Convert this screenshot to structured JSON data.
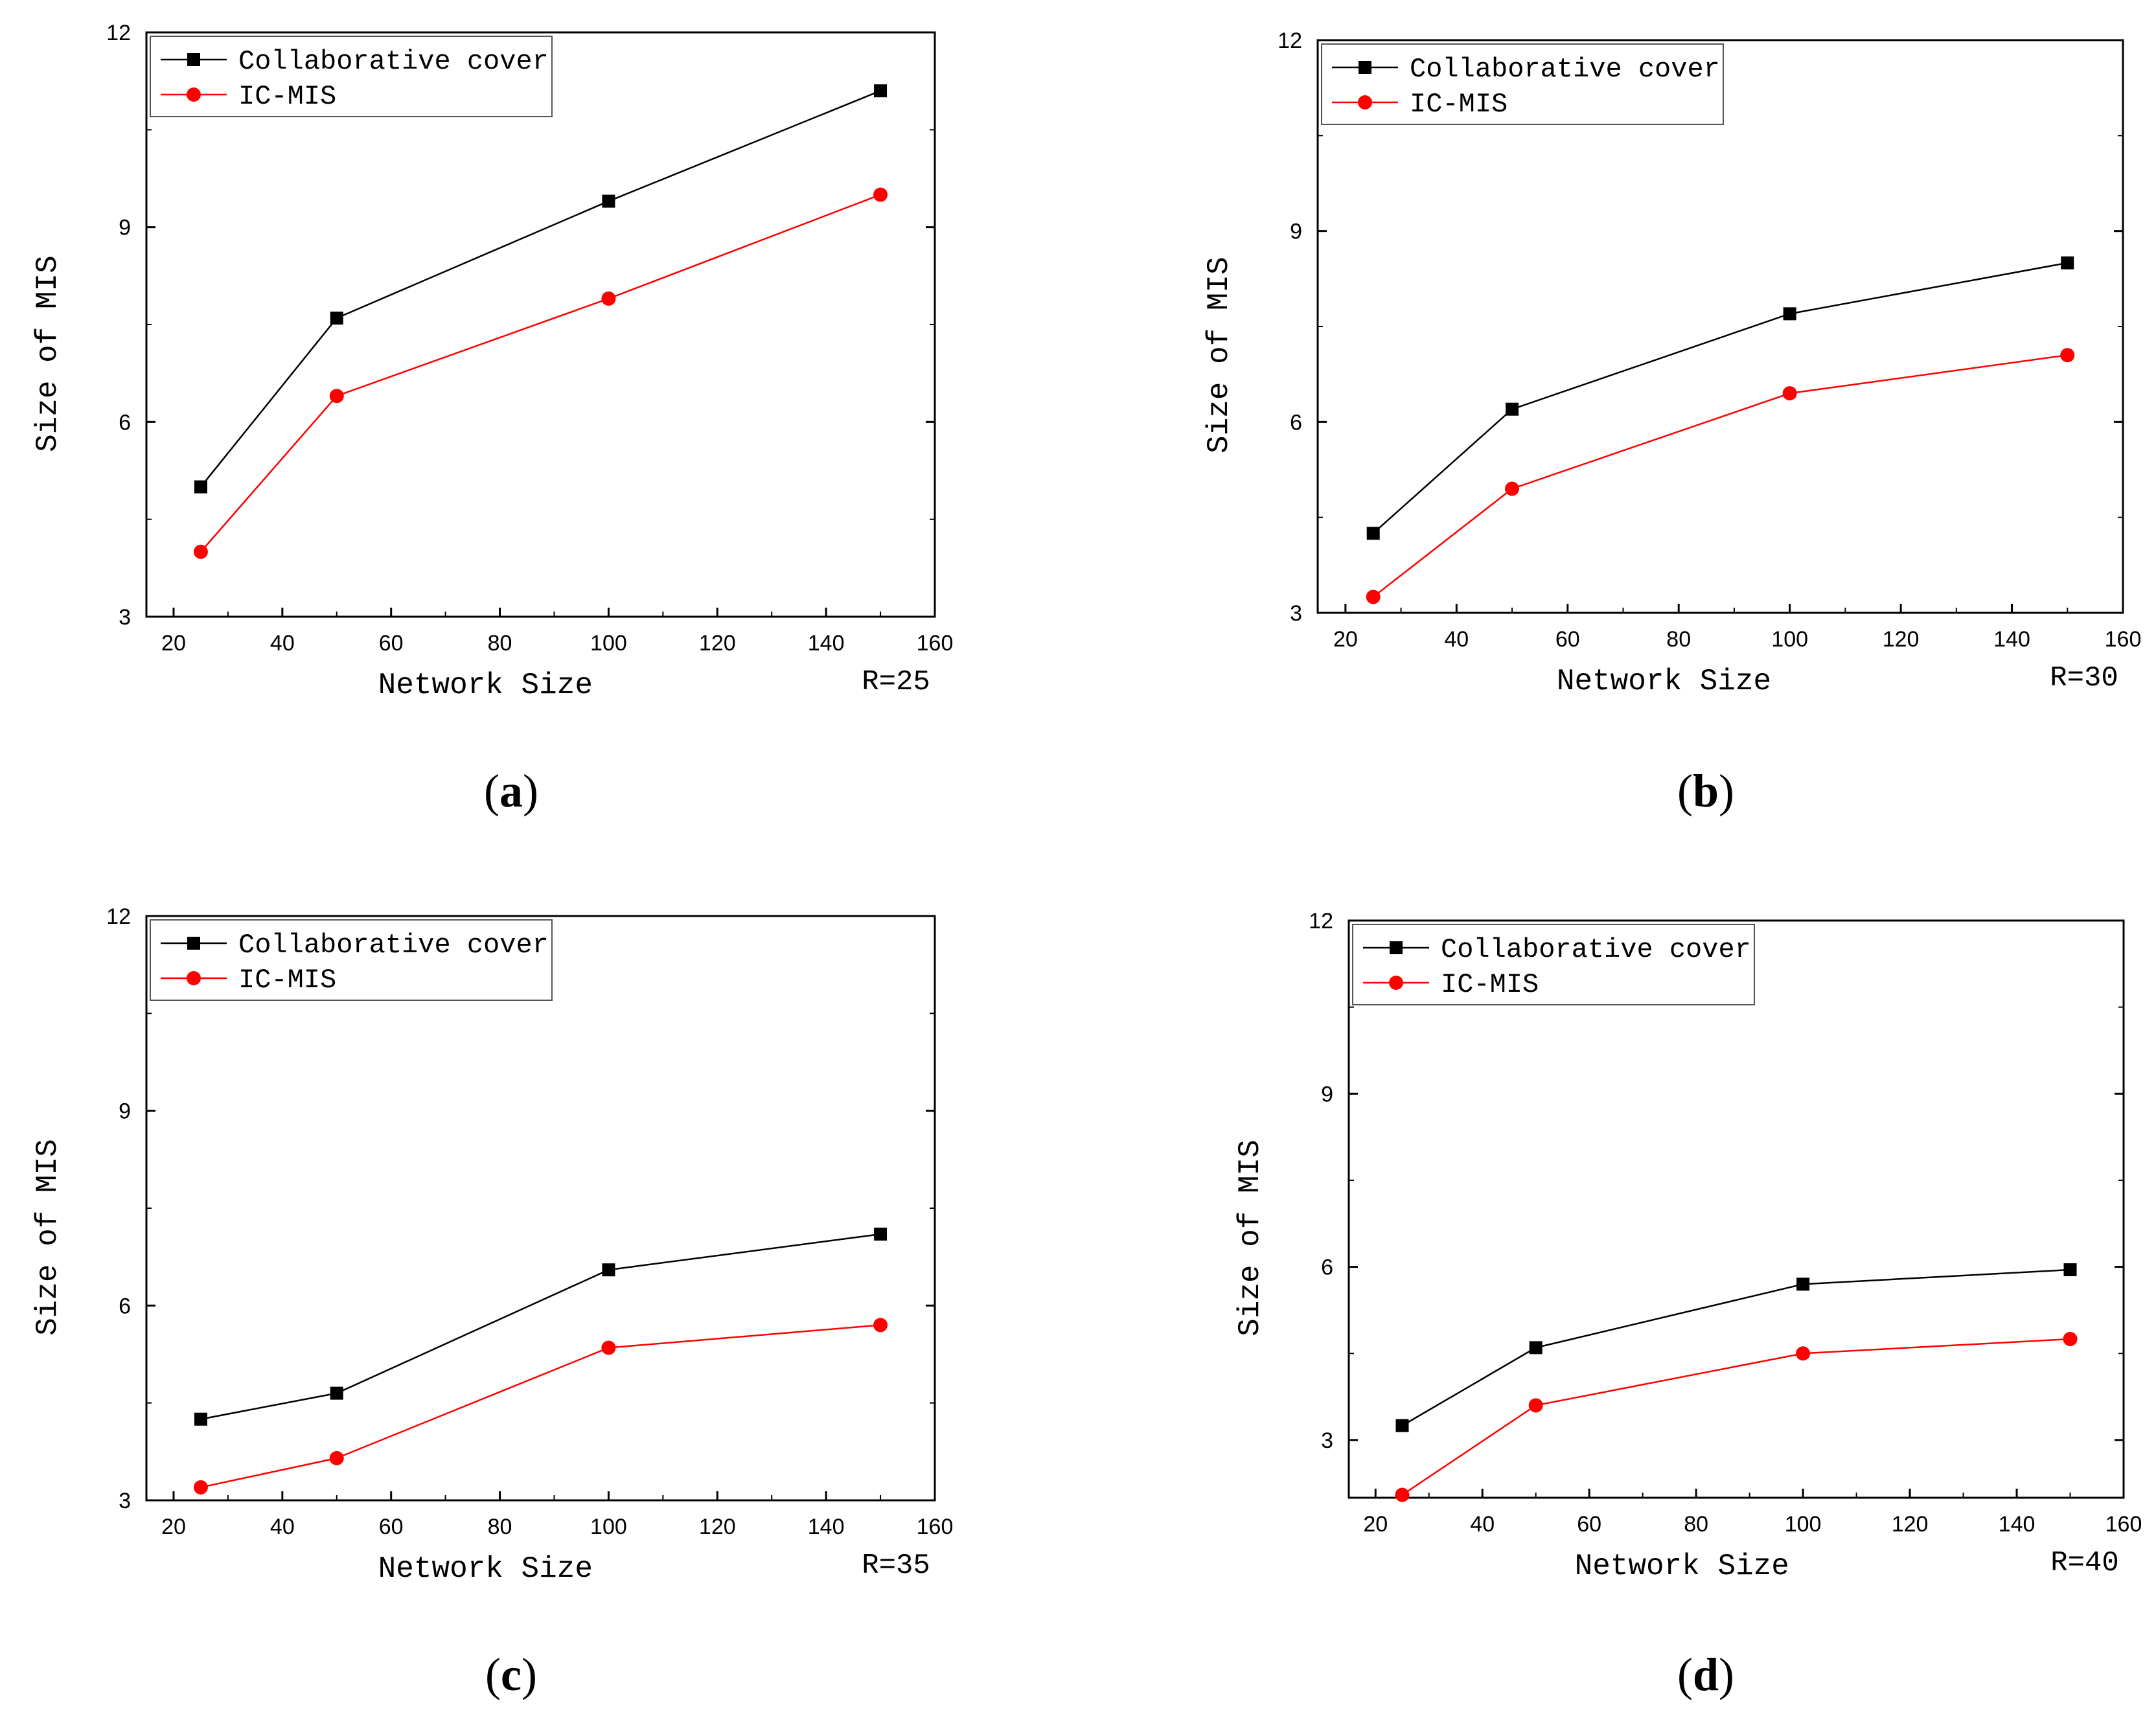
{
  "figure": {
    "colors": {
      "series1": "#000000",
      "series2": "#ff0000",
      "axis": "#000000"
    }
  },
  "chart_data": [
    {
      "type": "line",
      "panel_label": "a",
      "annotation": "R=25",
      "xlabel": "Network Size",
      "ylabel": "Size of MIS",
      "xlim": [
        15,
        160
      ],
      "ylim": [
        3,
        12
      ],
      "xticks": [
        20,
        40,
        60,
        80,
        100,
        120,
        140,
        160
      ],
      "yticks": [
        3,
        6,
        9,
        12
      ],
      "legend": "top-left",
      "x": [
        25,
        50,
        100,
        150
      ],
      "series": [
        {
          "name": "Collaborative cover",
          "marker": "square",
          "color": "#000000",
          "values": [
            5.0,
            7.6,
            9.4,
            11.1
          ]
        },
        {
          "name": "IC-MIS",
          "marker": "circle",
          "color": "#ff0000",
          "values": [
            4.0,
            6.4,
            7.9,
            9.5
          ]
        }
      ]
    },
    {
      "type": "line",
      "panel_label": "b",
      "annotation": "R=30",
      "xlabel": "Network Size",
      "ylabel": "Size of MIS",
      "xlim": [
        15,
        160
      ],
      "ylim": [
        3,
        12
      ],
      "xticks": [
        20,
        40,
        60,
        80,
        100,
        120,
        140,
        160
      ],
      "yticks": [
        3,
        6,
        9,
        12
      ],
      "legend": "top-left",
      "x": [
        25,
        50,
        100,
        150
      ],
      "series": [
        {
          "name": "Collaborative cover",
          "marker": "square",
          "color": "#000000",
          "values": [
            4.25,
            6.2,
            7.7,
            8.5
          ]
        },
        {
          "name": "IC-MIS",
          "marker": "circle",
          "color": "#ff0000",
          "values": [
            3.25,
            4.95,
            6.45,
            7.05
          ]
        }
      ]
    },
    {
      "type": "line",
      "panel_label": "c",
      "annotation": "R=35",
      "xlabel": "Network Size",
      "ylabel": "Size of MIS",
      "xlim": [
        15,
        160
      ],
      "ylim": [
        3,
        12
      ],
      "xticks": [
        20,
        40,
        60,
        80,
        100,
        120,
        140,
        160
      ],
      "yticks": [
        3,
        6,
        9,
        12
      ],
      "legend": "top-left",
      "x": [
        25,
        50,
        100,
        150
      ],
      "series": [
        {
          "name": "Collaborative cover",
          "marker": "square",
          "color": "#000000",
          "values": [
            4.25,
            4.65,
            6.55,
            7.1
          ]
        },
        {
          "name": "IC-MIS",
          "marker": "circle",
          "color": "#ff0000",
          "values": [
            3.2,
            3.65,
            5.35,
            5.7
          ]
        }
      ]
    },
    {
      "type": "line",
      "panel_label": "d",
      "annotation": "R=40",
      "xlabel": "Network Size",
      "ylabel": "Size of MIS",
      "xlim": [
        15,
        160
      ],
      "ylim": [
        2,
        12
      ],
      "xticks": [
        20,
        40,
        60,
        80,
        100,
        120,
        140,
        160
      ],
      "yticks": [
        3,
        6,
        9,
        12
      ],
      "legend": "top-left",
      "x": [
        25,
        50,
        100,
        150
      ],
      "series": [
        {
          "name": "Collaborative cover",
          "marker": "square",
          "color": "#000000",
          "values": [
            3.25,
            4.6,
            5.7,
            5.95
          ]
        },
        {
          "name": "IC-MIS",
          "marker": "circle",
          "color": "#ff0000",
          "values": [
            2.05,
            3.6,
            4.5,
            4.75
          ]
        }
      ]
    }
  ]
}
